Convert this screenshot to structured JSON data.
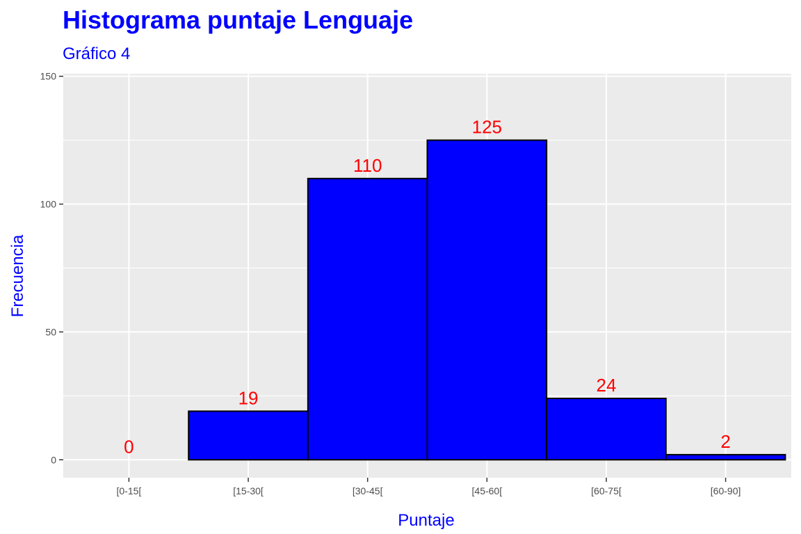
{
  "chart_data": {
    "type": "bar",
    "title": "Histograma puntaje Lenguaje",
    "subtitle": "Gráfico 4",
    "xlabel": "Puntaje",
    "ylabel": "Frecuencia",
    "categories": [
      "[0-15[",
      "[15-30[",
      "[30-45[",
      "[45-60[",
      "[60-75[",
      "[60-90]"
    ],
    "values": [
      0,
      19,
      110,
      125,
      24,
      2
    ],
    "data_labels": [
      "0",
      "19",
      "110",
      "125",
      "24",
      "2"
    ],
    "yticks": [
      0,
      50,
      100,
      150
    ],
    "ytick_labels": [
      "0",
      "50",
      "100",
      "150"
    ],
    "ylim": [
      -7,
      151
    ],
    "grid": true,
    "colors": {
      "bar_fill": "#0000ff",
      "bar_stroke": "#000000",
      "panel_bg": "#ebebeb",
      "grid": "#ffffff",
      "title": "#0000ff",
      "label": "#ff0000"
    }
  }
}
